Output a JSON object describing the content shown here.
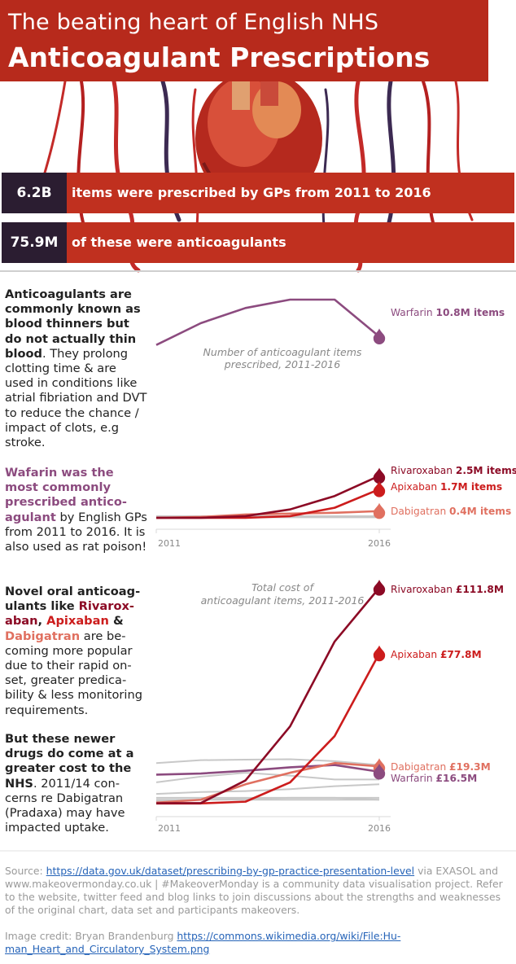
{
  "header": {
    "title_line1": "The beating heart of English NHS",
    "title_line2": "Anticoagulant Prescriptions"
  },
  "stats": [
    {
      "value": "6.2B",
      "text": "items were prescribed by GPs from 2011 to 2016"
    },
    {
      "value": "75.9M",
      "text": "of these were anticoagulants"
    }
  ],
  "sidebar": {
    "p1": {
      "lead": "Anticoagulants are commonly known as blood thinners but do not actually thin blood",
      "rest": ". They prolong clotting time & are used in conditions like atrial fibriation and DVT to reduce the chance / impact of clots, e.g stroke."
    },
    "p2": {
      "lead": "Wafarin was the most commonly prescribed antico-agulant",
      "rest": " by English GPs from 2011 to 2016. It is also used as rat poison!"
    },
    "p3": {
      "intro": "Novel oral anticoag-ulants like ",
      "riva": "Rivarox-aban",
      "sep1": ", ",
      "apix": "Apixaban",
      "sep2": " & ",
      "dabi": "Dabigatran",
      "rest": " are be-coming more popular due to their rapid on-set, greater predica-bility & less monitoring requirements."
    },
    "p4": {
      "lead": "But these newer drugs do come at a greater cost to the NHS",
      "rest": ". 2011/14 con-cerns re Dabigatran (Pradaxa) may have impacted uptake."
    }
  },
  "footer": {
    "source_label": "Source: ",
    "source_link": "https://data.gov.uk/dataset/prescribing-by-gp-practice-presentation-level",
    "source_rest": " via EXASOL and www.makeovermonday.co.uk | #MakeoverMonday is a community data visualisation project. Refer to the website, twitter feed and blog links to join discussions about the strengths and weaknesses of the original chart, data set and participants makeovers.",
    "credit_label": "Image credit: Bryan Brandenburg ",
    "credit_link": "https://commons.wikimedia.org/wiki/File:Hu-man_Heart_and_Circulatory_System.png"
  },
  "colors": {
    "title_band": "#b72a1c",
    "stat_dark": "#2b1d31",
    "stat_red": "#c0301f",
    "warfarin": "#8c4b7f",
    "rivaroxaban": "#8c0a25",
    "apixaban": "#cc1c1c",
    "dabigatran": "#e07060",
    "other": "#c8c8c8"
  },
  "chart_data": [
    {
      "type": "line",
      "title": "Number of anticoagulant items prescribed, 2011-2016",
      "x": [
        2011,
        2012,
        2013,
        2014,
        2015,
        2016
      ],
      "xticks": [
        "2011",
        "2016"
      ],
      "unit": "M items",
      "series": [
        {
          "name": "Warfarin",
          "values": [
            10.3,
            11.6,
            12.5,
            13.0,
            13.0,
            10.8
          ],
          "label_value": "10.8M items",
          "color": "#8c4b7f"
        },
        {
          "name": "Rivaroxaban",
          "values": [
            0.0,
            0.0,
            0.1,
            0.5,
            1.3,
            2.5
          ],
          "label_value": "2.5M items",
          "color": "#8c0a25"
        },
        {
          "name": "Apixaban",
          "values": [
            0.0,
            0.0,
            0.0,
            0.1,
            0.6,
            1.7
          ],
          "label_value": "1.7M items",
          "color": "#cc1c1c"
        },
        {
          "name": "Dabigatran",
          "values": [
            0.0,
            0.05,
            0.2,
            0.25,
            0.3,
            0.4
          ],
          "label_value": "0.4M items",
          "color": "#e07060"
        }
      ],
      "others": [
        [
          0.05,
          0.05,
          0.06,
          0.06,
          0.07,
          0.07
        ],
        [
          0.02,
          0.02,
          0.03,
          0.03,
          0.03,
          0.03
        ],
        [
          0.1,
          0.1,
          0.1,
          0.1,
          0.1,
          0.1
        ]
      ]
    },
    {
      "type": "line",
      "title": "Total cost of anticoagulant items, 2011-2016",
      "x": [
        2011,
        2012,
        2013,
        2014,
        2015,
        2016
      ],
      "xticks": [
        "2011",
        "2016"
      ],
      "unit": "£M",
      "series": [
        {
          "name": "Rivaroxaban",
          "values": [
            0.2,
            0.3,
            12,
            40,
            84,
            111.8
          ],
          "label_value": "£111.8M",
          "color": "#8c0a25"
        },
        {
          "name": "Apixaban",
          "values": [
            0.1,
            0.1,
            1,
            11,
            35,
            77.8
          ],
          "label_value": "£77.8M",
          "color": "#cc1c1c"
        },
        {
          "name": "Dabigatran",
          "values": [
            0.5,
            2,
            10,
            16,
            21,
            19.3
          ],
          "label_value": "£19.3M",
          "color": "#e07060"
        },
        {
          "name": "Warfarin",
          "values": [
            15,
            15.6,
            17,
            18.8,
            20,
            16.5
          ],
          "label_value": "£16.5M",
          "color": "#8c4b7f"
        }
      ],
      "others": [
        [
          21,
          22.5,
          22.8,
          23,
          22,
          20
        ],
        [
          11,
          14,
          16,
          14.5,
          12.5,
          12.5
        ],
        [
          5,
          6,
          6.5,
          7.5,
          9,
          10
        ],
        [
          3,
          3,
          3,
          3,
          3,
          3
        ],
        [
          2,
          2,
          2,
          2,
          2,
          2
        ],
        [
          1.5,
          2,
          2.5,
          3,
          3,
          2
        ]
      ]
    }
  ]
}
